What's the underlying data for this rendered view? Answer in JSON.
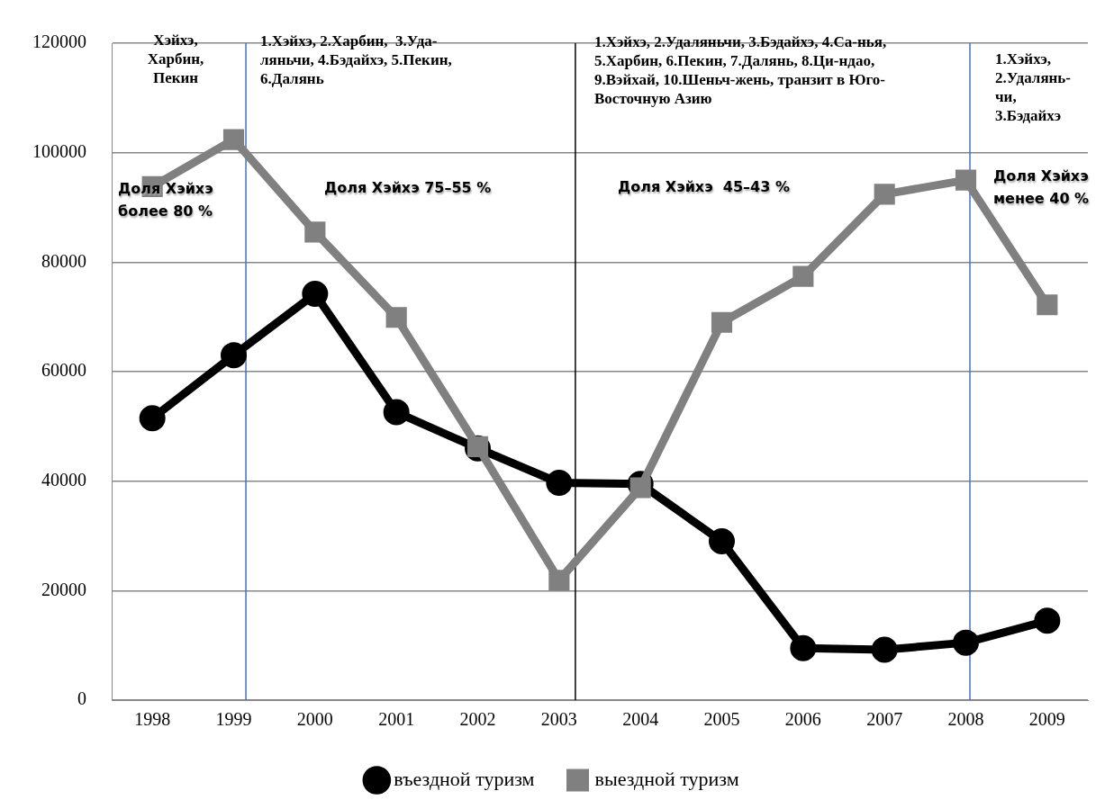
{
  "chart_data": {
    "type": "line",
    "x": [
      1998,
      1999,
      2000,
      2001,
      2002,
      2003,
      2004,
      2005,
      2006,
      2007,
      2008,
      2009
    ],
    "xlim": [
      1997.5,
      2009.5
    ],
    "xticks": [
      1998,
      1999,
      2000,
      2001,
      2002,
      2003,
      2004,
      2005,
      2006,
      2007,
      2008,
      2009
    ],
    "ylim": [
      0,
      120000
    ],
    "yticks": [
      0,
      20000,
      40000,
      60000,
      80000,
      100000,
      120000
    ],
    "grid": "y",
    "legend": "bottom",
    "series": [
      {
        "name": "въездной туризм",
        "color": "#000000",
        "marker": "circle",
        "values": [
          51500,
          63000,
          74200,
          52600,
          46000,
          39700,
          39500,
          29000,
          9500,
          9200,
          10500,
          14500
        ]
      },
      {
        "name": "выездной туризм",
        "color": "#808080",
        "marker": "square",
        "values": [
          93800,
          102400,
          85500,
          69900,
          46300,
          21900,
          38800,
          69000,
          77400,
          92400,
          95000,
          72200
        ]
      }
    ],
    "ref_lines": [
      {
        "axis": "x",
        "value": 1999.15,
        "color": "#4472c4"
      },
      {
        "axis": "x",
        "value": 2003.2,
        "color": "#000000"
      },
      {
        "axis": "x",
        "value": 2008.05,
        "color": "#4472c4"
      }
    ],
    "annotations": [
      "Хэйхэ,\nХарбин,\nПекин",
      "1.Хэйхэ, 2.Харбин,  3.Уда-\nляньчи, 4.Бэдайхэ, 5.Пекин,\n6.Далянь",
      "1.Хэйхэ, 2.Удаляньчи, 3.Бэдайхэ, 4.Са-нья,\n5.Харбин, 6.Пекин, 7.Далянь, 8.Ци-ндао,\n9.Вэйхай, 10.Шеньч-жень, транзит в Юго-\nВосточную Азию",
      "1.Хэйхэ,\n2.Удалянь-\nчи,\n3.Бэдайхэ",
      "Доля Хэйхэ\nболее 80 %",
      "Доля Хэйхэ 75–55 %",
      "Доля Хэйхэ  45–43 %",
      "Доля Хэйхэ\nменее 40 %"
    ]
  }
}
